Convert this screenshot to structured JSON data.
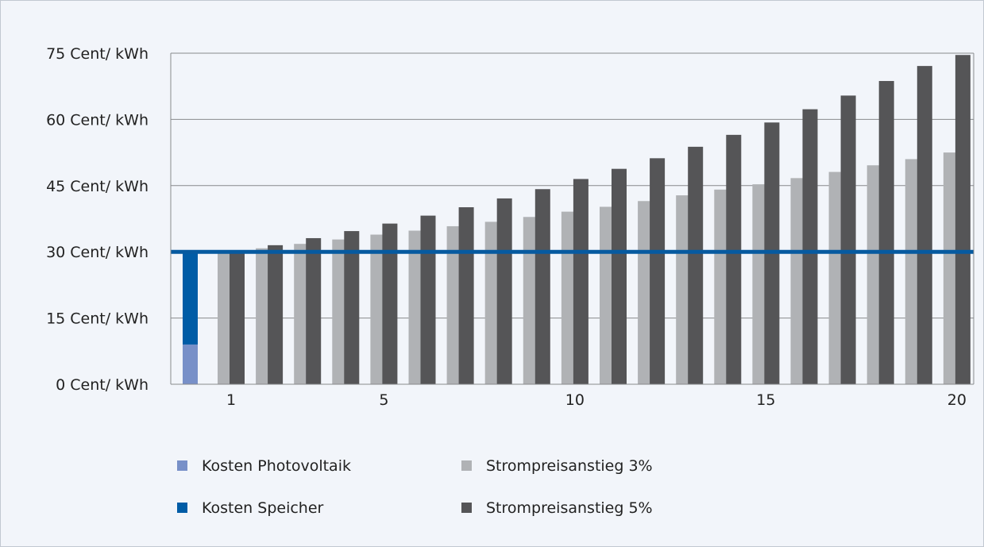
{
  "chart_data": {
    "type": "bar",
    "categories": [
      "1",
      "2",
      "3",
      "4",
      "5",
      "6",
      "7",
      "8",
      "9",
      "10",
      "11",
      "12",
      "13",
      "14",
      "15",
      "16",
      "17",
      "18",
      "19",
      "20"
    ],
    "x_ticks": [
      "1",
      "5",
      "10",
      "15",
      "20"
    ],
    "y_ticks": [
      "75 Cent/ kWh",
      "60 Cent/ kWh",
      "45 Cent/ kWh",
      "30 Cent/ kWh",
      "15 Cent/ kWh",
      "0 Cent/ kWh"
    ],
    "y_tick_values": [
      75,
      60,
      45,
      30,
      15,
      0
    ],
    "ylim": [
      0,
      75
    ],
    "grid": true,
    "legend_position": "bottom",
    "cost_bar": {
      "photovoltaik": 9.0,
      "speicher_total": 30.0
    },
    "reference_line_value": 30.0,
    "series": [
      {
        "name": "Strompreisanstieg 3%",
        "values": [
          29.8,
          30.8,
          31.8,
          32.8,
          33.9,
          34.8,
          35.8,
          36.8,
          37.9,
          39.1,
          40.2,
          41.5,
          42.8,
          44.1,
          45.3,
          46.7,
          48.1,
          49.6,
          51.0,
          52.5
        ]
      },
      {
        "name": "Strompreisanstieg 5%",
        "values": [
          30.0,
          31.5,
          33.1,
          34.7,
          36.4,
          38.2,
          40.1,
          42.1,
          44.2,
          46.5,
          48.8,
          51.2,
          53.8,
          56.5,
          59.3,
          62.3,
          65.4,
          68.7,
          72.1,
          74.6
        ]
      }
    ],
    "legend": [
      {
        "label": "Kosten Photovoltaik",
        "color": "#7890c8"
      },
      {
        "label": "Strompreisanstieg 3%",
        "color": "#b0b2b5"
      },
      {
        "label": "Kosten Speicher",
        "color": "#005ca6"
      },
      {
        "label": "Strompreisanstieg 5%",
        "color": "#555557"
      }
    ],
    "colors": {
      "photovoltaik": "#7890c8",
      "speicher": "#005ca6",
      "strom3": "#b0b2b5",
      "strom5": "#555557",
      "reference_line": "#065aa0",
      "grid": "#888a8c"
    }
  }
}
